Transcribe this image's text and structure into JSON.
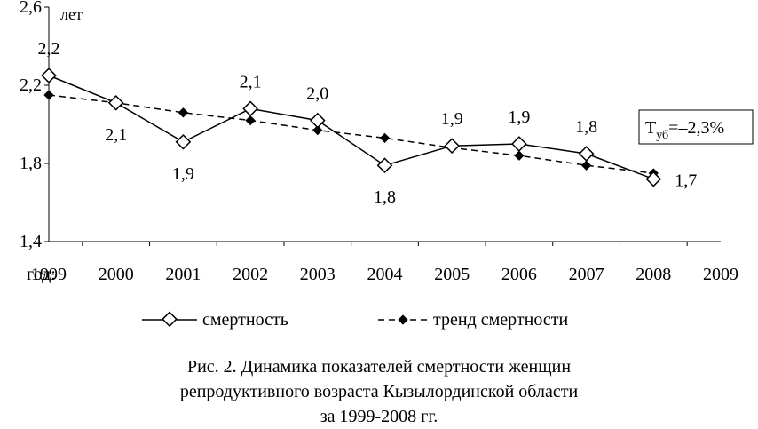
{
  "chart_data": {
    "type": "line",
    "x": [
      1999,
      2000,
      2001,
      2002,
      2003,
      2004,
      2005,
      2006,
      2007,
      2008
    ],
    "xticks": [
      "1999",
      "2000",
      "2001",
      "2002",
      "2003",
      "2004",
      "2005",
      "2006",
      "2007",
      "2008",
      "2009"
    ],
    "xlabel": "год:",
    "ylabel": "лет",
    "yticks": [
      "1,4",
      "1,8",
      "2,2",
      "2,6"
    ],
    "ylim": [
      1.4,
      2.6
    ],
    "xlim": [
      1999,
      2009
    ],
    "grid": false,
    "series": [
      {
        "name": "смертность",
        "values": [
          2.25,
          2.11,
          1.91,
          2.08,
          2.02,
          1.79,
          1.89,
          1.9,
          1.85,
          1.72
        ],
        "labels": [
          "2,2",
          "2,1",
          "1,9",
          "2,1",
          "2,0",
          "1,8",
          "1,9",
          "1,9",
          "1,8",
          "1,7"
        ],
        "color": "#000000",
        "marker": "open-diamond",
        "line": "solid"
      },
      {
        "name": "тренд смертности",
        "values": [
          2.15,
          2.11,
          2.06,
          2.02,
          1.97,
          1.93,
          1.88,
          1.84,
          1.79,
          1.75
        ],
        "color": "#000000",
        "marker": "filled-diamond",
        "line": "dashed"
      }
    ],
    "annotation": {
      "prefix": "Т",
      "subscript": "уб",
      "value": "=–2,3%"
    },
    "legend_position": "bottom"
  },
  "caption": {
    "line1": "Рис. 2. Динамика показателей смертности женщин",
    "line2": "репродуктивного возраста Кызылординской области",
    "line3": "за 1999-2008 гг."
  }
}
